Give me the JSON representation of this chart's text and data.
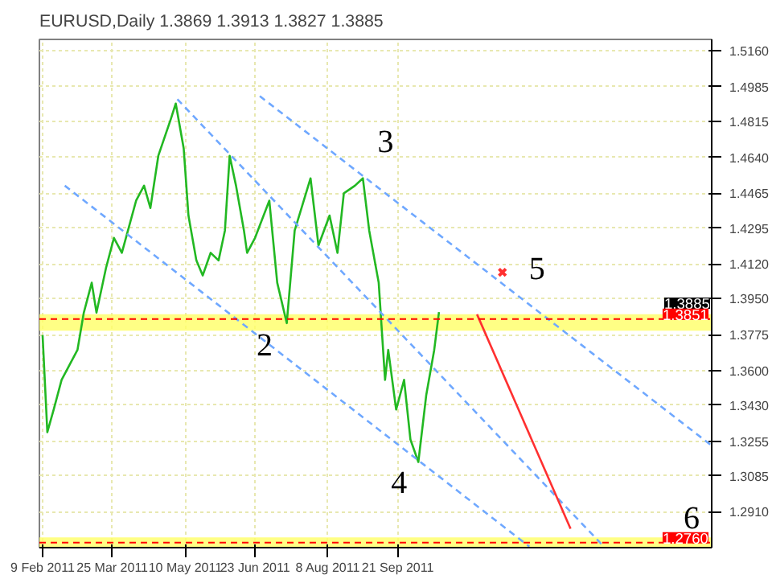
{
  "chart_data": {
    "type": "line",
    "title": "EURUSD,Daily  1.3869 1.3913 1.3827 1.3885",
    "xlim": [
      "2011-02-07",
      "2012-04-06"
    ],
    "ylim": [
      1.2735,
      1.5216
    ],
    "xticks": [
      {
        "value": "2011-02-09",
        "label": "9 Feb 2011"
      },
      {
        "value": "2011-03-25",
        "label": "25 Mar 2011"
      },
      {
        "value": "2011-05-10",
        "label": "10 May 2011"
      },
      {
        "value": "2011-06-23",
        "label": "23 Jun 2011"
      },
      {
        "value": "2011-08-08",
        "label": "8 Aug 2011"
      },
      {
        "value": "2011-09-21",
        "label": "21 Sep 2011"
      }
    ],
    "yticks": [
      {
        "value": 1.516,
        "label": "1.5160"
      },
      {
        "value": 1.4985,
        "label": "1.4985"
      },
      {
        "value": 1.4815,
        "label": "1.4815"
      },
      {
        "value": 1.464,
        "label": "1.4640"
      },
      {
        "value": 1.4465,
        "label": "1.4465"
      },
      {
        "value": 1.4295,
        "label": "1.4295"
      },
      {
        "value": 1.412,
        "label": "1.4120"
      },
      {
        "value": 1.395,
        "label": "1.3950"
      },
      {
        "value": 1.3775,
        "label": "1.3775"
      },
      {
        "value": 1.36,
        "label": "1.3600"
      },
      {
        "value": 1.343,
        "label": "1.3430"
      },
      {
        "value": 1.3255,
        "label": "1.3255"
      },
      {
        "value": 1.3085,
        "label": "1.3085"
      },
      {
        "value": 1.291,
        "label": "1.2910"
      }
    ],
    "grid": true,
    "marker": "none",
    "series": [
      {
        "color": "#22b822",
        "line_style": "solid",
        "x": [
          "2011-02-09",
          "2011-02-12",
          "2011-02-16",
          "2011-02-21",
          "2011-03-03",
          "2011-03-07",
          "2011-03-12",
          "2011-03-15",
          "2011-03-21",
          "2011-03-26",
          "2011-03-31",
          "2011-04-09",
          "2011-04-14",
          "2011-04-18",
          "2011-04-23",
          "2011-05-01",
          "2011-05-04",
          "2011-05-09",
          "2011-05-12",
          "2011-05-17",
          "2011-05-21",
          "2011-05-26",
          "2011-05-31",
          "2011-06-04",
          "2011-06-07",
          "2011-06-11",
          "2011-06-16",
          "2011-06-18",
          "2011-06-23",
          "2011-07-02",
          "2011-07-07",
          "2011-07-13",
          "2011-07-18",
          "2011-07-28",
          "2011-08-02",
          "2011-08-09",
          "2011-08-14",
          "2011-08-18",
          "2011-08-25",
          "2011-08-30",
          "2011-09-03",
          "2011-09-09",
          "2011-09-13",
          "2011-09-15",
          "2011-09-20",
          "2011-09-25",
          "2011-09-29",
          "2011-10-04",
          "2011-10-09",
          "2011-10-14",
          "2011-10-17"
        ],
        "values": [
          1.3773,
          1.3299,
          1.3409,
          1.3554,
          1.37,
          1.3882,
          1.4028,
          1.3882,
          1.41,
          1.4247,
          1.4174,
          1.4429,
          1.4502,
          1.4393,
          1.4648,
          1.483,
          1.4903,
          1.4684,
          1.4356,
          1.4137,
          1.4064,
          1.4174,
          1.4137,
          1.4283,
          1.4648,
          1.4502,
          1.4283,
          1.4174,
          1.4247,
          1.4429,
          1.4028,
          1.3831,
          1.4283,
          1.4538,
          1.421,
          1.4356,
          1.4174,
          1.4465,
          1.4502,
          1.4538,
          1.4283,
          1.4028,
          1.3554,
          1.37,
          1.3409,
          1.3554,
          1.3263,
          1.3153,
          1.3481,
          1.37,
          1.3885
        ]
      },
      {
        "type": "line",
        "color": "#6fa8ff",
        "line_style": "dashed",
        "x": [
          "2011-05-05",
          "2012-01-29"
        ],
        "values": [
          1.4924,
          1.274
        ]
      },
      {
        "type": "line",
        "color": "#6fa8ff",
        "line_style": "dashed",
        "x": [
          "2011-06-26",
          "2012-04-06"
        ],
        "values": [
          1.4939,
          1.3233
        ]
      },
      {
        "type": "line",
        "color": "#6fa8ff",
        "line_style": "dashed",
        "x": [
          "2011-02-23",
          "2011-12-13"
        ],
        "values": [
          1.4502,
          1.274
        ]
      },
      {
        "type": "line",
        "color": "#ff3030",
        "line_style": "solid",
        "x": [
          "2011-11-10",
          "2012-01-08"
        ],
        "values": [
          1.3874,
          1.2827
        ]
      },
      {
        "type": "scatter",
        "color": "#ff3030",
        "marker": "cross",
        "x": [
          "2011-11-26"
        ],
        "values": [
          1.4079
        ]
      }
    ],
    "ref_lines": [
      {
        "axis": "y",
        "value": 1.3851,
        "label": "1.3851",
        "color": "#ff0000",
        "line_style": "dashed"
      },
      {
        "axis": "y",
        "value": 1.276,
        "label": "1.2760",
        "color": "#ff0000",
        "line_style": "dashed"
      }
    ],
    "bands": [
      {
        "axis": "y",
        "from": 1.3794,
        "to": 1.3874,
        "color": "#ffff66"
      },
      {
        "axis": "y",
        "from": 1.2735,
        "to": 1.2785,
        "color": "#ffff66"
      }
    ],
    "annotations": [
      {
        "text": "1.3885",
        "y": 1.3885
      },
      "2",
      "3",
      "4",
      "5",
      "6"
    ]
  }
}
